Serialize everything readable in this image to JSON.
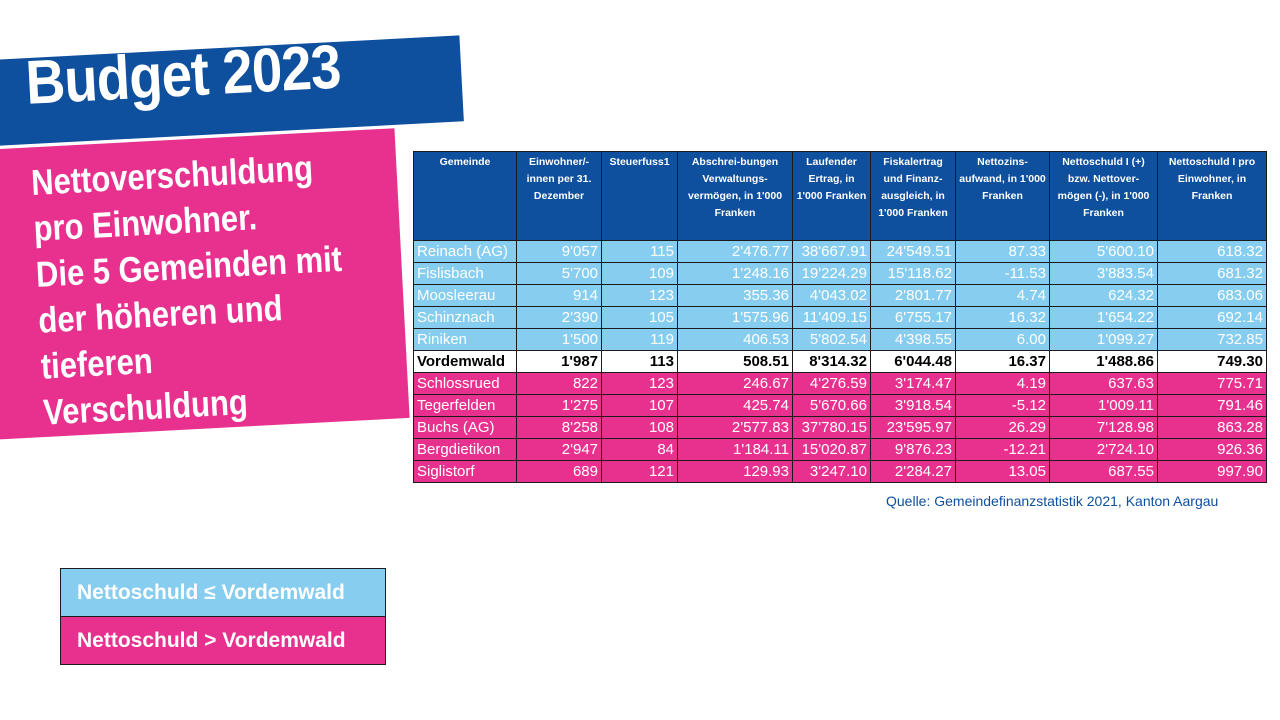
{
  "title": "Budget 2023",
  "subtitle_lines": [
    "Nettoverschuldung",
    "pro Einwohner.",
    "Die 5 Gemeinden mit",
    "der höheren und",
    "tieferen",
    "Verschuldung"
  ],
  "table": {
    "headers": [
      "Gemeinde",
      "Einwohner/-innen per 31. Dezember",
      "Steuerfuss1",
      "Abschrei-bungen Verwaltungs-vermögen, in 1'000 Franken",
      "Laufender Ertrag, in 1'000 Franken",
      "Fiskalertrag und Finanz-ausgleich, in 1'000 Franken",
      "Nettozins-aufwand, in 1'000 Franken",
      "Nettoschuld I (+) bzw. Nettover-mögen (-), in 1'000 Franken",
      "Nettoschuld I pro Einwohner, in Franken"
    ],
    "rows": [
      {
        "group": "low",
        "cells": [
          "Reinach (AG)",
          "9'057",
          "115",
          "2'476.77",
          "38'667.91",
          "24'549.51",
          "87.33",
          "5'600.10",
          "618.32"
        ]
      },
      {
        "group": "low",
        "cells": [
          "Fislisbach",
          "5'700",
          "109",
          "1'248.16",
          "19'224.29",
          "15'118.62",
          "-11.53",
          "3'883.54",
          "681.32"
        ]
      },
      {
        "group": "low",
        "cells": [
          "Moosleerau",
          "914",
          "123",
          "355.36",
          "4'043.02",
          "2'801.77",
          "4.74",
          "624.32",
          "683.06"
        ]
      },
      {
        "group": "low",
        "cells": [
          "Schinznach",
          "2'390",
          "105",
          "1'575.96",
          "11'409.15",
          "6'755.17",
          "16.32",
          "1'654.22",
          "692.14"
        ]
      },
      {
        "group": "low",
        "cells": [
          "Riniken",
          "1'500",
          "119",
          "406.53",
          "5'802.54",
          "4'398.55",
          "6.00",
          "1'099.27",
          "732.85"
        ]
      },
      {
        "group": "mid",
        "cells": [
          "Vordemwald",
          "1'987",
          "113",
          "508.51",
          "8'314.32",
          "6'044.48",
          "16.37",
          "1'488.86",
          "749.30"
        ]
      },
      {
        "group": "high",
        "cells": [
          "Schlossrued",
          "822",
          "123",
          "246.67",
          "4'276.59",
          "3'174.47",
          "4.19",
          "637.63",
          "775.71"
        ]
      },
      {
        "group": "high",
        "cells": [
          "Tegerfelden",
          "1'275",
          "107",
          "425.74",
          "5'670.66",
          "3'918.54",
          "-5.12",
          "1'009.11",
          "791.46"
        ]
      },
      {
        "group": "high",
        "cells": [
          "Buchs (AG)",
          "8'258",
          "108",
          "2'577.83",
          "37'780.15",
          "23'595.97",
          "26.29",
          "7'128.98",
          "863.28"
        ]
      },
      {
        "group": "high",
        "cells": [
          "Bergdietikon",
          "2'947",
          "84",
          "1'184.11",
          "15'020.87",
          "9'876.23",
          "-12.21",
          "2'724.10",
          "926.36"
        ]
      },
      {
        "group": "high",
        "cells": [
          "Siglistorf",
          "689",
          "121",
          "129.93",
          "3'247.10",
          "2'284.27",
          "13.05",
          "687.55",
          "997.90"
        ]
      }
    ]
  },
  "source": "Quelle: Gemeindefinanzstatistik 2021, Kanton Aargau",
  "legend": {
    "low": "Nettoschuld ≤ Vordemwald",
    "high": "Nettoschuld > Vordemwald"
  },
  "colors": {
    "blue": "#0e4f9e",
    "light_blue": "#86cdf0",
    "pink": "#e8318e"
  }
}
